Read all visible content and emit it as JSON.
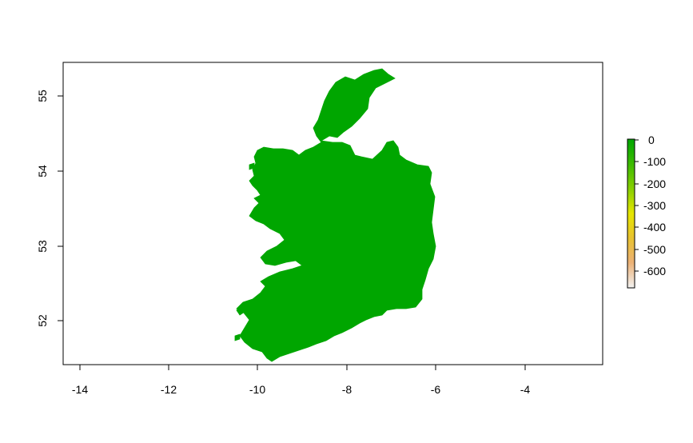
{
  "map": {
    "type": "raster",
    "fill_color": "#00A600",
    "background": "#ffffff",
    "x_ticks": [
      "-14",
      "-12",
      "-10",
      "-8",
      "-6",
      "-4"
    ],
    "y_ticks": [
      "52",
      "53",
      "54",
      "55"
    ],
    "xlim": [
      -14.4,
      -2.3
    ],
    "ylim": [
      51.4,
      55.45
    ]
  },
  "legend": {
    "labels": [
      "0",
      "-100",
      "-200",
      "-300",
      "-400",
      "-500",
      "-600"
    ],
    "range": [
      -690,
      0
    ],
    "colors": [
      "#00A600",
      "#3EBB00",
      "#8BD000",
      "#E6E600",
      "#E8C32E",
      "#ECB176",
      "#F2F2F2"
    ]
  }
}
